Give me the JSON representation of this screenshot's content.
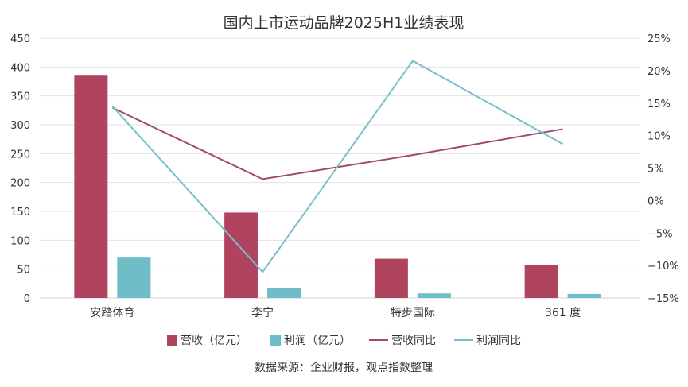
{
  "chart_data": {
    "type": "bar",
    "title": "国内上市运动品牌2025H1业绩表现",
    "categories": [
      "安踏体育",
      "李宁",
      "特步国际",
      "361 度"
    ],
    "series": [
      {
        "name": "营收（亿元）",
        "kind": "bar",
        "axis": "left",
        "color": "#b0445f",
        "values": [
          385,
          148,
          68,
          57
        ]
      },
      {
        "name": "利润（亿元）",
        "kind": "bar",
        "axis": "left",
        "color": "#6fbdc7",
        "values": [
          70,
          17,
          8,
          7
        ]
      },
      {
        "name": "营收同比",
        "kind": "line",
        "axis": "right",
        "color": "#a24a66",
        "values": [
          14.3,
          3.3,
          7.0,
          11.0
        ]
      },
      {
        "name": "利润同比",
        "kind": "line",
        "axis": "right",
        "color": "#79bfca",
        "values": [
          14.5,
          -11.0,
          21.5,
          8.7
        ]
      }
    ],
    "y_left": {
      "ylim": [
        0,
        450
      ],
      "ticks": [
        "0",
        "50",
        "100",
        "150",
        "200",
        "250",
        "300",
        "350",
        "400",
        "450"
      ]
    },
    "y_right": {
      "ylim": [
        -15,
        25
      ],
      "ticks": [
        "−15%",
        "−10%",
        "−5%",
        "0%",
        "5%",
        "10%",
        "15%",
        "20%",
        "25%"
      ]
    },
    "grid": true,
    "legend": "bottom"
  },
  "source_note": "数据来源：企业财报，观点指数整理"
}
